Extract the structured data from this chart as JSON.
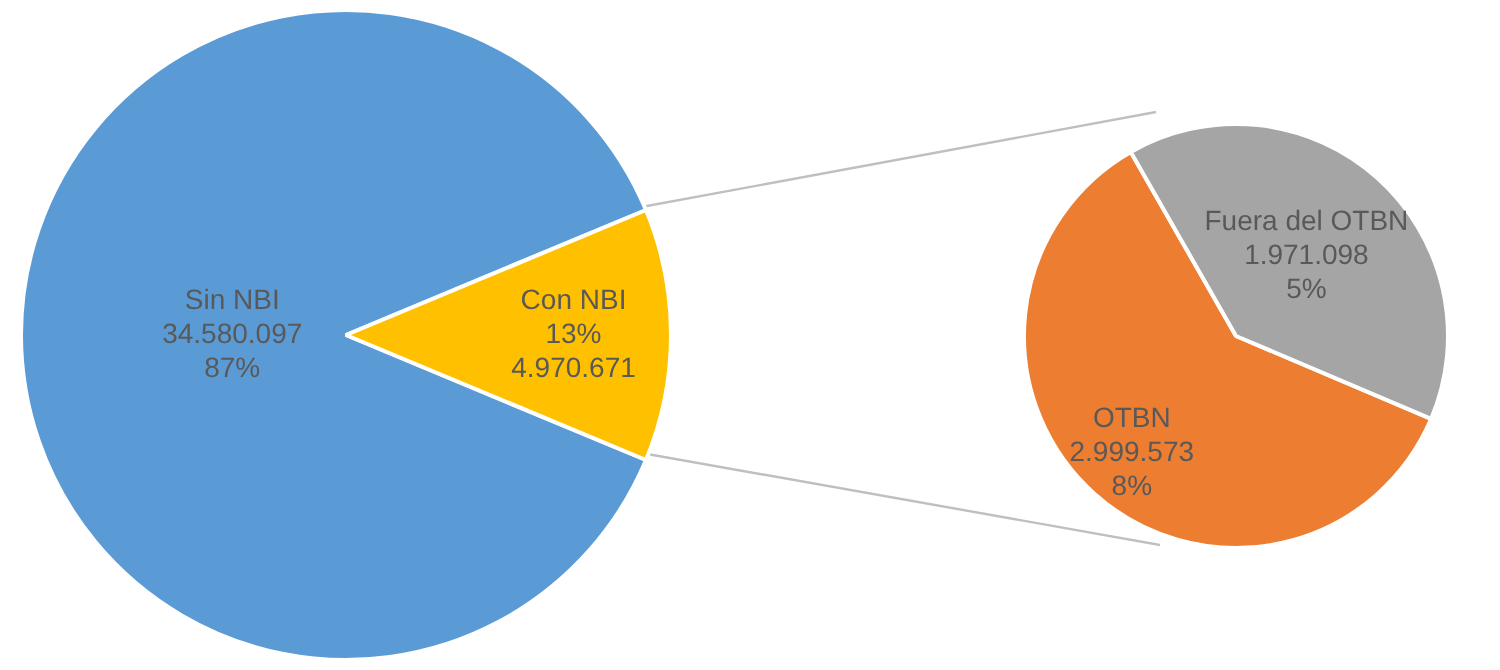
{
  "chart_data": [
    {
      "type": "pie",
      "categories": [
        "Sin NBI",
        "Con NBI"
      ],
      "values": [
        34580097,
        4970671
      ],
      "colors": [
        "#5b9bd5",
        "#ffc000"
      ],
      "value_labels": [
        "34.580.097\n87%",
        "13%\n4.970.671"
      ]
    },
    {
      "type": "pie",
      "categories": [
        "OTBN",
        "Fuera del OTBN"
      ],
      "values": [
        2999573,
        1971098
      ],
      "colors": [
        "#ed7d31",
        "#a5a5a5"
      ],
      "value_labels": [
        "2.999.573\n8%",
        "1.971.098\n5%"
      ]
    }
  ]
}
